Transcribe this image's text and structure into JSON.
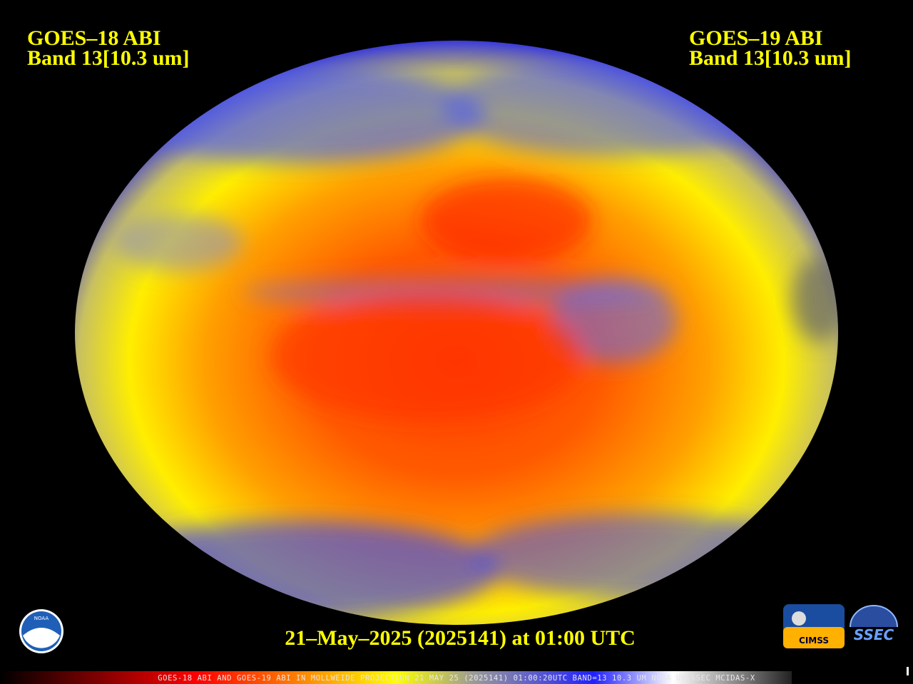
{
  "header": {
    "left": {
      "satellite": "GOES–18 ABI",
      "band": "Band 13[10.3 um]"
    },
    "right": {
      "satellite": "GOES–19 ABI",
      "band": "Band 13[10.3 um]"
    }
  },
  "timestamp": "21–May–2025 (2025141) at 01:00 UTC",
  "footer": "GOES-18 ABI AND GOES-19 ABI IN MOLLWEIDE PROJECTION 21 MAY 25 (2025141) 01:00:20UTC BAND=13 10.3 UM NOAA UW-SSEC MCIDAS-X",
  "logos": {
    "noaa": "NOAA",
    "cimss": "CIMSS",
    "ssec": "SSEC"
  }
}
